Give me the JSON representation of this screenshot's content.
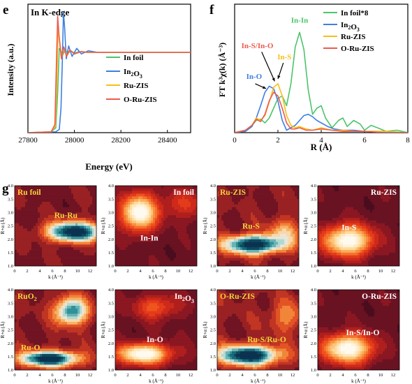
{
  "panel_letters": {
    "e": "e",
    "f": "f",
    "g": "g"
  },
  "colors": {
    "in_foil": "#4cc46a",
    "in2o3": "#3f7fe0",
    "ru_zis": "#f6c019",
    "o_ru_zis": "#ef5a4d",
    "label_yellow": "#f5d33a",
    "map_dark": "#5a0f24",
    "map_white": "#ffffff"
  },
  "chart_data": [
    {
      "id": "e",
      "type": "line",
      "title": "In K-edge",
      "xlabel": "Energy (eV)",
      "ylabel": "Intensity (a.u.)",
      "xlim": [
        27800,
        28500
      ],
      "ylim": [
        0,
        1.6
      ],
      "xticks": [
        "27800",
        "28000",
        "28200",
        "28400"
      ],
      "xtick_values": [
        27800,
        28000,
        28200,
        28400
      ],
      "legend": [
        "In foil",
        "In2O3",
        "Ru-ZIS",
        "O-Ru-ZIS"
      ],
      "legend_position": "center-right",
      "series": [
        {
          "name": "In foil",
          "color": "#4cc46a",
          "x": [
            27800,
            27900,
            27920,
            27928,
            27935,
            27942,
            27950,
            27960,
            27972,
            27985,
            28000,
            28020,
            28050,
            28100,
            28200,
            28300,
            28400,
            28500
          ],
          "y": [
            0,
            0.01,
            0.06,
            0.5,
            1.05,
            1.02,
            0.97,
            1.03,
            0.99,
            1.02,
            0.99,
            1.01,
            1.0,
            1.0,
            1.0,
            1.0,
            1.0,
            1.0
          ]
        },
        {
          "name": "In2O3",
          "color": "#3f7fe0",
          "x": [
            27800,
            27920,
            27935,
            27942,
            27948,
            27953,
            27958,
            27965,
            27975,
            27990,
            28010,
            28030,
            28060,
            28100,
            28200,
            28300,
            28400,
            28500
          ],
          "y": [
            0,
            0.01,
            0.04,
            0.3,
            0.9,
            1.5,
            1.3,
            0.92,
            1.08,
            0.95,
            1.05,
            0.98,
            1.02,
            1.0,
            1.0,
            1.0,
            1.0,
            1.0
          ]
        },
        {
          "name": "Ru-ZIS",
          "color": "#f6c019",
          "x": [
            27800,
            27900,
            27918,
            27925,
            27930,
            27936,
            27945,
            27955,
            27968,
            27982,
            28000,
            28030,
            28060,
            28100,
            28200,
            28300,
            28400,
            28500
          ],
          "y": [
            0,
            0.01,
            0.08,
            0.7,
            1.3,
            1.15,
            0.93,
            1.06,
            0.96,
            1.03,
            0.98,
            1.01,
            1.0,
            1.0,
            1.0,
            1.0,
            1.0,
            1.0
          ]
        },
        {
          "name": "O-Ru-ZIS",
          "color": "#ef5a4d",
          "x": [
            27800,
            27900,
            27916,
            27922,
            27928,
            27934,
            27944,
            27954,
            27966,
            27980,
            28000,
            28030,
            28060,
            28100,
            28200,
            28300,
            28400,
            28500
          ],
          "y": [
            0,
            0.01,
            0.1,
            0.8,
            1.45,
            1.2,
            0.92,
            1.07,
            0.95,
            1.03,
            0.98,
            1.01,
            1.0,
            1.0,
            1.0,
            1.0,
            1.0,
            1.0
          ]
        }
      ]
    },
    {
      "id": "f",
      "type": "line",
      "title": "",
      "xlabel": "R (Å)",
      "ylabel": "FT k³χ(k) (Å⁻³)",
      "xlim": [
        0,
        8
      ],
      "ylim": [
        0,
        1.05
      ],
      "xticks": [
        "0",
        "2",
        "4",
        "6",
        "8"
      ],
      "xtick_values": [
        0,
        2,
        4,
        6,
        8
      ],
      "legend": [
        "In foil*8",
        "In2O3",
        "Ru-ZIS",
        "O-Ru-ZIS"
      ],
      "legend_position": "top-right",
      "annotations": [
        {
          "text": "In-In",
          "color": "#4cc46a",
          "x": 3.0,
          "y": 0.9
        },
        {
          "text": "In-S/In-O",
          "color": "#ef5a4d",
          "x": 1.05,
          "y": 0.69
        },
        {
          "text": "In-S",
          "color": "#f6c019",
          "x": 2.3,
          "y": 0.6
        },
        {
          "text": "In-O",
          "color": "#3f7fe0",
          "x": 0.9,
          "y": 0.44
        }
      ],
      "series": [
        {
          "name": "In foil*8",
          "color": "#4cc46a",
          "x": [
            0,
            0.5,
            0.8,
            1.0,
            1.2,
            1.4,
            1.6,
            1.8,
            2.0,
            2.2,
            2.4,
            2.6,
            2.8,
            3.0,
            3.2,
            3.4,
            3.6,
            3.8,
            4.0,
            4.2,
            4.5,
            4.8,
            5.0,
            5.2,
            5.5,
            5.8,
            6.0,
            6.3,
            6.6,
            7.0,
            7.5,
            8.0
          ],
          "y": [
            0,
            0.02,
            0.06,
            0.1,
            0.11,
            0.08,
            0.12,
            0.2,
            0.28,
            0.3,
            0.22,
            0.4,
            0.7,
            0.82,
            0.68,
            0.35,
            0.15,
            0.2,
            0.22,
            0.12,
            0.04,
            0.1,
            0.12,
            0.05,
            0.1,
            0.07,
            0.02,
            0.06,
            0.04,
            0.01,
            0.02,
            0.0
          ]
        },
        {
          "name": "In2O3",
          "color": "#3f7fe0",
          "x": [
            0,
            0.5,
            0.8,
            1.0,
            1.2,
            1.4,
            1.6,
            1.8,
            2.0,
            2.2,
            2.4,
            2.6,
            2.8,
            3.0,
            3.2,
            3.4,
            3.6,
            3.8,
            4.0,
            4.3,
            4.6,
            5.0,
            5.5,
            6.0,
            7.0,
            8.0
          ],
          "y": [
            0,
            0.01,
            0.05,
            0.12,
            0.22,
            0.33,
            0.38,
            0.36,
            0.26,
            0.1,
            0.02,
            0.04,
            0.06,
            0.1,
            0.14,
            0.15,
            0.13,
            0.1,
            0.08,
            0.05,
            0.03,
            0.02,
            0.02,
            0.01,
            0.01,
            0.0
          ]
        },
        {
          "name": "Ru-ZIS",
          "color": "#f6c019",
          "x": [
            0,
            0.5,
            0.8,
            1.0,
            1.2,
            1.4,
            1.6,
            1.8,
            2.0,
            2.2,
            2.4,
            2.6,
            2.8,
            3.0,
            3.3,
            3.6,
            4.0,
            4.5,
            5.0,
            5.5,
            6.0,
            7.0,
            8.0
          ],
          "y": [
            0,
            0.02,
            0.06,
            0.12,
            0.1,
            0.14,
            0.25,
            0.37,
            0.4,
            0.3,
            0.14,
            0.06,
            0.04,
            0.05,
            0.03,
            0.02,
            0.04,
            0.02,
            0.02,
            0.01,
            0.01,
            0.01,
            0.0
          ]
        },
        {
          "name": "O-Ru-ZIS",
          "color": "#ef5a4d",
          "x": [
            0,
            0.5,
            0.8,
            1.0,
            1.2,
            1.4,
            1.6,
            1.8,
            2.0,
            2.2,
            2.4,
            2.6,
            2.8,
            3.0,
            3.3,
            3.6,
            4.0,
            4.5,
            5.0,
            5.5,
            6.0,
            7.0,
            8.0
          ],
          "y": [
            0,
            0.02,
            0.06,
            0.11,
            0.09,
            0.15,
            0.26,
            0.33,
            0.3,
            0.2,
            0.08,
            0.03,
            0.03,
            0.04,
            0.02,
            0.02,
            0.03,
            0.02,
            0.01,
            0.01,
            0.01,
            0.0,
            0.0
          ]
        }
      ]
    },
    {
      "id": "g",
      "type": "heatmap",
      "xlabel": "k (Å⁻¹)",
      "ylabel": "R+α (Å)",
      "xlim": [
        0,
        13
      ],
      "ylim": [
        1.0,
        4.0
      ],
      "xticks": [
        "0",
        "2",
        "4",
        "6",
        "8",
        "10",
        "12"
      ],
      "xtick_values": [
        0,
        2,
        4,
        6,
        8,
        10,
        12
      ],
      "yticks": [
        "1.0",
        "1.5",
        "2.0",
        "2.5",
        "3.0",
        "3.5",
        "4.0"
      ],
      "ytick_values": [
        1.0,
        1.5,
        2.0,
        2.5,
        3.0,
        3.5,
        4.0
      ],
      "maps": [
        {
          "title": "Ru foil",
          "title_color": "#f5d33a",
          "title_pos": "left",
          "label": "Ru-Ru",
          "label_color": "#f5d33a",
          "label_xy": [
            6.3,
            2.8
          ],
          "scheme": "ru",
          "peaks": [
            {
              "k": 9.5,
              "r": 2.28,
              "sk": 3.0,
              "sr": 0.26,
              "a": 1.0
            }
          ],
          "bg": 0.15
        },
        {
          "title": "In foil",
          "title_color": "#ffffff",
          "title_pos": "right",
          "label": "In-In",
          "label_color": "#ffffff",
          "label_xy": [
            4.0,
            1.95
          ],
          "scheme": "in",
          "peaks": [
            {
              "k": 3.8,
              "r": 3.0,
              "sk": 1.9,
              "sr": 0.45,
              "a": 1.0
            },
            {
              "k": 11,
              "r": 3.3,
              "sk": 2.5,
              "sr": 0.4,
              "a": 0.25
            }
          ],
          "bg": 0.12
        },
        {
          "title": "Ru-ZIS",
          "title_color": "#f5d33a",
          "title_pos": "left",
          "label": "Ru-S",
          "label_color": "#f5d33a",
          "label_xy": [
            4.0,
            2.4
          ],
          "scheme": "ru",
          "peaks": [
            {
              "k": 5.8,
              "r": 1.8,
              "sk": 3.2,
              "sr": 0.24,
              "a": 1.0
            },
            {
              "k": 11,
              "r": 2.3,
              "sk": 2.0,
              "sr": 0.35,
              "a": 0.3
            }
          ],
          "bg": 0.18
        },
        {
          "title": "Ru-ZIS",
          "title_color": "#ffffff",
          "title_pos": "right",
          "label": "In-S",
          "label_color": "#ffffff",
          "label_xy": [
            3.8,
            2.35
          ],
          "scheme": "in",
          "peaks": [
            {
              "k": 4.8,
              "r": 1.95,
              "sk": 2.6,
              "sr": 0.38,
              "a": 1.0
            }
          ],
          "bg": 0.12
        },
        {
          "title": "RuO2",
          "title_color": "#f5d33a",
          "title_pos": "left",
          "label": "Ru-O",
          "label_color": "#f5d33a",
          "label_xy": [
            1.0,
            1.75
          ],
          "scheme": "ru",
          "peaks": [
            {
              "k": 5.5,
              "r": 1.42,
              "sk": 3.2,
              "sr": 0.2,
              "a": 1.0
            },
            {
              "k": 9.0,
              "r": 3.2,
              "sk": 1.8,
              "sr": 0.35,
              "a": 0.75
            }
          ],
          "bg": 0.18
        },
        {
          "title": "In2O3",
          "title_color": "#ffffff",
          "title_pos": "right",
          "label": "In-O",
          "label_color": "#ffffff",
          "label_xy": [
            5.0,
            2.05
          ],
          "scheme": "in",
          "peaks": [
            {
              "k": 4.5,
              "r": 1.6,
              "sk": 2.8,
              "sr": 0.25,
              "a": 1.0
            },
            {
              "k": 6.5,
              "r": 3.35,
              "sk": 2.4,
              "sr": 0.3,
              "a": 0.35
            }
          ],
          "bg": 0.14
        },
        {
          "title": "O-Ru-ZIS",
          "title_color": "#f5d33a",
          "title_pos": "left",
          "label": "Ru-S/Ru-O",
          "label_color": "#f5d33a",
          "label_xy": [
            4.8,
            2.05
          ],
          "scheme": "ru",
          "peaks": [
            {
              "k": 5.0,
              "r": 1.55,
              "sk": 3.3,
              "sr": 0.25,
              "a": 1.0
            },
            {
              "k": 11,
              "r": 3.0,
              "sk": 2.0,
              "sr": 0.4,
              "a": 0.25
            }
          ],
          "bg": 0.2
        },
        {
          "title": "O-Ru-ZIS",
          "title_color": "#ffffff",
          "title_pos": "right",
          "label": "In-S/In-O",
          "label_color": "#ffffff",
          "label_xy": [
            4.5,
            2.3
          ],
          "scheme": "in",
          "peaks": [
            {
              "k": 4.8,
              "r": 1.8,
              "sk": 2.6,
              "sr": 0.36,
              "a": 1.0
            }
          ],
          "bg": 0.12
        }
      ]
    }
  ]
}
